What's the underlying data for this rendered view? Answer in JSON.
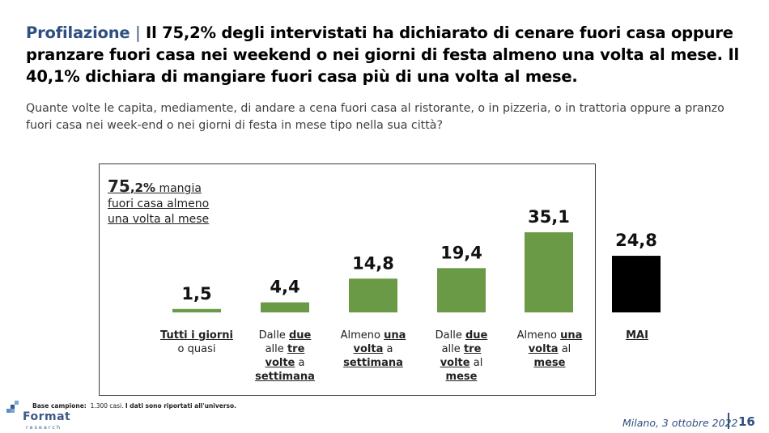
{
  "header": {
    "kicker": "Profilazione",
    "separator": "|",
    "headline": "Il 75,2% degli intervistati ha dichiarato di cenare fuori casa oppure pranzare fuori casa nei weekend o nei giorni di festa almeno una volta al mese. Il 40,1% dichiara di mangiare fuori casa più di una volta al mese.",
    "question": "Quante volte le capita, mediamente, di andare a cena fuori casa al ristorante, o in pizzeria, o in trattoria oppure a pranzo fuori casa nei week-end o nei giorni di festa in mese tipo nella sua città?"
  },
  "callout": {
    "big": "75",
    "mid": ",2%",
    "l1": "mangia",
    "l2": "fuori casa almeno",
    "l3": "una volta al mese"
  },
  "chart_data": {
    "type": "bar",
    "categories": [
      "Tutti i giorni o quasi",
      "Dalle due alle tre volte a settimana",
      "Almeno una volta a settimana",
      "Dalle due alle tre volte al mese",
      "Almeno una volta al mese",
      "MAI"
    ],
    "values": [
      1.5,
      4.4,
      14.8,
      19.4,
      35.1,
      24.8
    ],
    "value_labels": [
      "1,5",
      "4,4",
      "14,8",
      "19,4",
      "35,1",
      "24,8"
    ],
    "colors": [
      "#6a9a46",
      "#6a9a46",
      "#6a9a46",
      "#6a9a46",
      "#6a9a46",
      "#000000"
    ],
    "ylim": [
      0,
      35.1
    ]
  },
  "categories": {
    "c1": {
      "a": "Tutti i giorni",
      "b": "o quasi"
    },
    "c2": {
      "a": "Dalle",
      "b": "due",
      "c": "alle",
      "d": "tre",
      "e": "volte",
      "f": "a",
      "g": "settimana"
    },
    "c3": {
      "a": "Almeno",
      "b": "una",
      "c": "volta",
      "d": "a",
      "e": "settimana"
    },
    "c4": {
      "a": "Dalle",
      "b": "due",
      "c": "alle",
      "d": "tre",
      "e": "volte",
      "f": "al",
      "g": "mese"
    },
    "c5": {
      "a": "Almeno",
      "b": "una",
      "c": "volta",
      "d": "al",
      "e": "mese"
    },
    "c6": {
      "a": "MAI"
    }
  },
  "footer": {
    "base_label": "Base campione:",
    "base_value": "1.300 casi.",
    "base_note": "I dati sono riportati all'universo.",
    "brand": "Format",
    "brand_sub": "research",
    "date": "Milano, 3 ottobre 2022",
    "page": "16"
  },
  "colors": {
    "accent": "#2e4f7f",
    "bar": "#6a9a46",
    "mai": "#000000"
  }
}
